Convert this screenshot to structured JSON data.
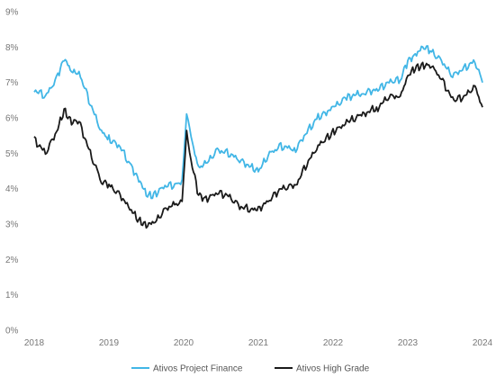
{
  "chart_data": {
    "type": "line",
    "title": "",
    "xlabel": "",
    "ylabel": "",
    "ylim": [
      0,
      9
    ],
    "xlim": [
      2018,
      2024
    ],
    "grid": false,
    "legend_placement": "bottom-center",
    "y_ticks": [
      "0%",
      "1%",
      "2%",
      "3%",
      "4%",
      "5%",
      "6%",
      "7%",
      "8%",
      "9%"
    ],
    "x_ticks": [
      "2018",
      "2019",
      "2020",
      "2021",
      "2022",
      "2023",
      "2024"
    ],
    "series": [
      {
        "name": "Ativos Project Finance",
        "color": "#41b6e6",
        "x": [
          2018.0,
          2018.15,
          2018.3,
          2018.4,
          2018.5,
          2018.6,
          2018.75,
          2018.9,
          2019.0,
          2019.15,
          2019.3,
          2019.4,
          2019.5,
          2019.6,
          2019.75,
          2019.9,
          2019.98,
          2020.04,
          2020.1,
          2020.2,
          2020.3,
          2020.45,
          2020.6,
          2020.75,
          2020.9,
          2021.0,
          2021.15,
          2021.3,
          2021.5,
          2021.65,
          2021.8,
          2022.0,
          2022.2,
          2022.4,
          2022.6,
          2022.75,
          2022.9,
          2023.0,
          2023.1,
          2023.2,
          2023.3,
          2023.45,
          2023.6,
          2023.75,
          2023.9,
          2024.0
        ],
        "values": [
          6.8,
          6.6,
          7.1,
          7.7,
          7.3,
          7.3,
          6.4,
          5.6,
          5.4,
          5.2,
          4.6,
          4.3,
          3.8,
          3.8,
          4.1,
          4.1,
          4.2,
          6.2,
          5.4,
          4.6,
          4.7,
          5.1,
          5.0,
          4.8,
          4.6,
          4.5,
          5.0,
          5.2,
          5.1,
          5.6,
          6.0,
          6.3,
          6.6,
          6.7,
          6.8,
          7.0,
          7.1,
          7.6,
          7.8,
          8.0,
          7.9,
          7.6,
          7.2,
          7.4,
          7.6,
          7.0
        ]
      },
      {
        "name": "Ativos High Grade",
        "color": "#1a1a1a",
        "x": [
          2018.0,
          2018.15,
          2018.3,
          2018.4,
          2018.5,
          2018.6,
          2018.75,
          2018.9,
          2019.0,
          2019.15,
          2019.3,
          2019.4,
          2019.5,
          2019.6,
          2019.75,
          2019.9,
          2019.98,
          2020.04,
          2020.1,
          2020.2,
          2020.3,
          2020.45,
          2020.6,
          2020.75,
          2020.9,
          2021.0,
          2021.15,
          2021.3,
          2021.5,
          2021.65,
          2021.8,
          2022.0,
          2022.2,
          2022.4,
          2022.6,
          2022.75,
          2022.9,
          2023.0,
          2023.1,
          2023.2,
          2023.3,
          2023.45,
          2023.6,
          2023.75,
          2023.9,
          2024.0
        ],
        "values": [
          5.4,
          5.0,
          5.6,
          6.2,
          5.9,
          5.9,
          5.0,
          4.2,
          4.1,
          3.8,
          3.4,
          3.1,
          3.0,
          3.0,
          3.4,
          3.6,
          3.6,
          5.6,
          4.8,
          3.8,
          3.7,
          3.9,
          3.8,
          3.5,
          3.4,
          3.4,
          3.7,
          4.0,
          4.1,
          4.7,
          5.2,
          5.6,
          5.9,
          6.1,
          6.3,
          6.6,
          6.6,
          7.2,
          7.4,
          7.5,
          7.5,
          7.1,
          6.5,
          6.6,
          6.9,
          6.3
        ]
      }
    ]
  }
}
